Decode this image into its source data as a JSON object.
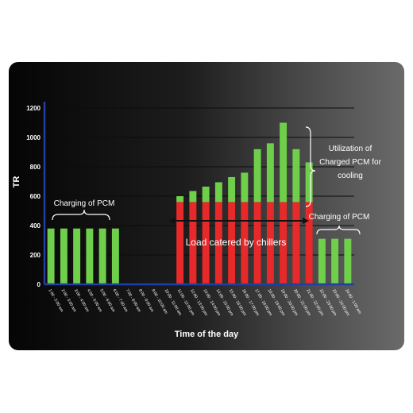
{
  "chart_data": {
    "type": "bar",
    "stacked": true,
    "ylabel": "TR",
    "xlabel": "Time of the day",
    "ylim": [
      0,
      1200
    ],
    "yticks": [
      0,
      200,
      400,
      600,
      800,
      1000,
      1200
    ],
    "grid": true,
    "categories": [
      "1:00 - 2:00 am",
      "2:00 - 3:00 am",
      "3:00 - 4:00 am",
      "4:00 - 5:00 am",
      "5:00 - 6:00 am",
      "6:00 - 7:00 am",
      "7:00 - 8:00 am",
      "8:00 - 9:00 am",
      "9:00 - 10:00 am",
      "10:00 - 11:00 am",
      "11:00 - 12:00 pm",
      "12:00 - 13:00 pm",
      "13:00 - 14:00 pm",
      "14:00 - 15:00 pm",
      "15:00 - 16:00 pm",
      "16:00 - 17:00 pm",
      "17:00 - 18:00 pm",
      "18:00 - 19:00 pm",
      "19:00 - 20:00 pm",
      "20:00 - 21:00 pm",
      "21:00 - 22:00 pm",
      "22:00 - 23:00 pm",
      "23:00 - 24:00 pm",
      "24:00 - 1:00 am"
    ],
    "series": [
      {
        "color": "#e8292a",
        "values": [
          0,
          0,
          0,
          0,
          0,
          0,
          0,
          0,
          0,
          0,
          560,
          560,
          560,
          560,
          560,
          560,
          560,
          560,
          560,
          560,
          560,
          0,
          0,
          0
        ]
      },
      {
        "color": "#6fcf4a",
        "values": [
          380,
          380,
          380,
          380,
          380,
          380,
          0,
          0,
          0,
          0,
          40,
          75,
          105,
          135,
          170,
          200,
          360,
          400,
          540,
          360,
          270,
          310,
          310,
          310
        ]
      }
    ],
    "annotations": [
      {
        "text": "Charging of PCM"
      },
      {
        "text": "Utilization of Charged PCM for cooling",
        "lines": [
          "Utilization of",
          "Charged PCM for",
          "cooling"
        ]
      },
      {
        "text": "Load catered by chillers"
      },
      {
        "text": "Charging of PCM"
      }
    ]
  }
}
